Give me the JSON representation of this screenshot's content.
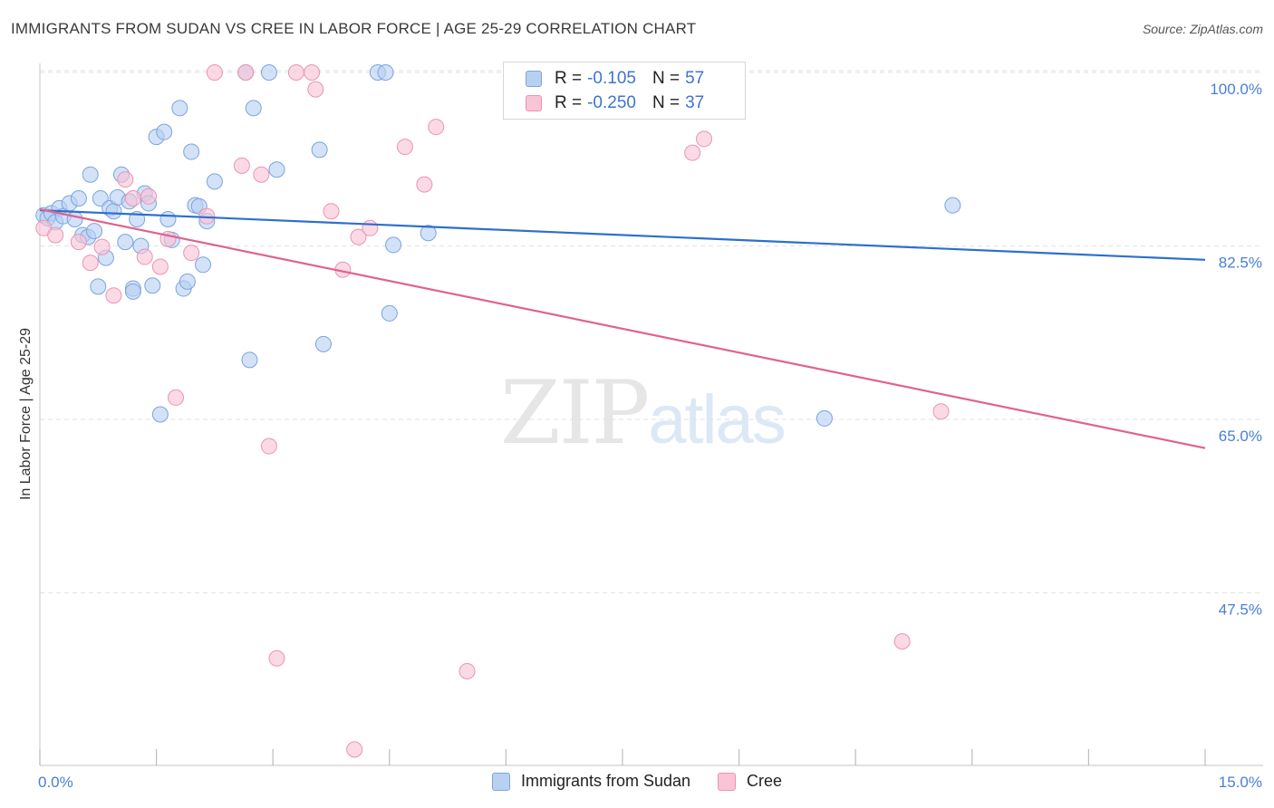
{
  "title": "IMMIGRANTS FROM SUDAN VS CREE IN LABOR FORCE | AGE 25-29 CORRELATION CHART",
  "source": "Source: ZipAtlas.com",
  "watermark": {
    "part1": "ZIP",
    "part2": "atlas"
  },
  "colors": {
    "blue_fill": "#b8d0f2",
    "blue_stroke": "#7ba4e0",
    "blue_line": "#2d6fce",
    "pink_fill": "#f9c4d6",
    "pink_stroke": "#ec93b3",
    "pink_line": "#e0628f",
    "grid": "#e2e2e2",
    "tick_text": "#4a7fd4"
  },
  "legend": {
    "rows": [
      {
        "r_label": "R =",
        "r_value": "-0.105",
        "n_label": "N =",
        "n_value": "57"
      },
      {
        "r_label": "R =",
        "r_value": "-0.250",
        "n_label": "N =",
        "n_value": "37"
      }
    ]
  },
  "chart_data": {
    "type": "scatter",
    "title": "IMMIGRANTS FROM SUDAN VS CREE IN LABOR FORCE | AGE 25-29 CORRELATION CHART",
    "xlabel": "",
    "ylabel": "In Labor Force | Age 25-29",
    "xlim": [
      0,
      15
    ],
    "ylim": [
      31.5,
      101.5
    ],
    "x_tick_labels": [
      {
        "value": 0,
        "label": "0.0%"
      },
      {
        "value": 15,
        "label": "15.0%"
      }
    ],
    "y_tick_labels": [
      {
        "value": 100,
        "label": "100.0%"
      },
      {
        "value": 82.5,
        "label": "82.5%"
      },
      {
        "value": 65,
        "label": "65.0%"
      },
      {
        "value": 47.5,
        "label": "47.5%"
      }
    ],
    "grid": true,
    "series": [
      {
        "name": "Immigrants from Sudan",
        "color": "blue",
        "trend": {
          "x0": 0,
          "y0": 86.1,
          "x1": 15,
          "y1": 81.1
        },
        "points": [
          [
            0.05,
            85.6
          ],
          [
            0.1,
            85.3
          ],
          [
            0.15,
            85.8
          ],
          [
            0.2,
            84.9
          ],
          [
            0.25,
            86.3
          ],
          [
            0.3,
            85.5
          ],
          [
            0.38,
            86.8
          ],
          [
            0.45,
            85.2
          ],
          [
            0.5,
            87.3
          ],
          [
            0.55,
            83.6
          ],
          [
            0.62,
            83.4
          ],
          [
            0.65,
            89.7
          ],
          [
            0.7,
            84.0
          ],
          [
            0.75,
            78.4
          ],
          [
            0.78,
            87.3
          ],
          [
            0.85,
            81.3
          ],
          [
            0.9,
            86.3
          ],
          [
            0.95,
            86.0
          ],
          [
            1.0,
            87.4
          ],
          [
            1.05,
            89.7
          ],
          [
            1.1,
            82.9
          ],
          [
            1.15,
            87.0
          ],
          [
            1.2,
            78.2
          ],
          [
            1.25,
            85.2
          ],
          [
            1.3,
            82.5
          ],
          [
            1.35,
            87.8
          ],
          [
            1.4,
            86.8
          ],
          [
            1.45,
            78.5
          ],
          [
            1.5,
            93.5
          ],
          [
            1.55,
            65.5
          ],
          [
            1.6,
            94.0
          ],
          [
            1.65,
            85.2
          ],
          [
            1.7,
            83.1
          ],
          [
            1.8,
            96.4
          ],
          [
            1.85,
            78.2
          ],
          [
            1.9,
            78.9
          ],
          [
            1.95,
            92.0
          ],
          [
            2.0,
            86.6
          ],
          [
            2.05,
            86.5
          ],
          [
            2.1,
            80.6
          ],
          [
            2.15,
            85.0
          ],
          [
            2.25,
            89.0
          ],
          [
            2.65,
            100.0
          ],
          [
            2.7,
            71.0
          ],
          [
            2.75,
            96.4
          ],
          [
            2.95,
            100.0
          ],
          [
            3.05,
            90.2
          ],
          [
            3.6,
            92.2
          ],
          [
            3.65,
            72.6
          ],
          [
            4.35,
            100.0
          ],
          [
            4.45,
            100.0
          ],
          [
            4.5,
            75.7
          ],
          [
            4.55,
            82.6
          ],
          [
            5.0,
            83.8
          ],
          [
            10.1,
            65.1
          ],
          [
            11.75,
            86.6
          ],
          [
            1.2,
            77.9
          ]
        ]
      },
      {
        "name": "Cree",
        "color": "pink",
        "trend": {
          "x0": 0,
          "y0": 86.2,
          "x1": 15,
          "y1": 62.1
        },
        "points": [
          [
            0.05,
            84.3
          ],
          [
            0.2,
            83.6
          ],
          [
            0.5,
            82.9
          ],
          [
            0.65,
            80.8
          ],
          [
            0.8,
            82.4
          ],
          [
            0.95,
            77.5
          ],
          [
            1.1,
            89.2
          ],
          [
            1.2,
            87.3
          ],
          [
            1.35,
            81.4
          ],
          [
            1.55,
            80.4
          ],
          [
            1.65,
            83.2
          ],
          [
            1.75,
            67.2
          ],
          [
            1.95,
            81.8
          ],
          [
            2.15,
            85.5
          ],
          [
            2.25,
            100.0
          ],
          [
            2.6,
            90.6
          ],
          [
            2.65,
            100.0
          ],
          [
            2.85,
            89.7
          ],
          [
            2.95,
            62.3
          ],
          [
            3.05,
            40.9
          ],
          [
            3.3,
            100.0
          ],
          [
            3.5,
            100.0
          ],
          [
            3.55,
            98.3
          ],
          [
            3.75,
            86.0
          ],
          [
            3.9,
            80.1
          ],
          [
            4.1,
            83.4
          ],
          [
            4.05,
            31.7
          ],
          [
            4.25,
            84.3
          ],
          [
            4.7,
            92.5
          ],
          [
            4.95,
            88.7
          ],
          [
            5.1,
            94.5
          ],
          [
            5.5,
            39.6
          ],
          [
            8.4,
            91.9
          ],
          [
            8.55,
            93.3
          ],
          [
            11.1,
            42.6
          ],
          [
            11.6,
            65.8
          ],
          [
            1.4,
            87.5
          ]
        ]
      }
    ]
  },
  "bottom_legend": [
    {
      "label": "Immigrants from Sudan",
      "color": "blue"
    },
    {
      "label": "Cree",
      "color": "pink"
    }
  ]
}
